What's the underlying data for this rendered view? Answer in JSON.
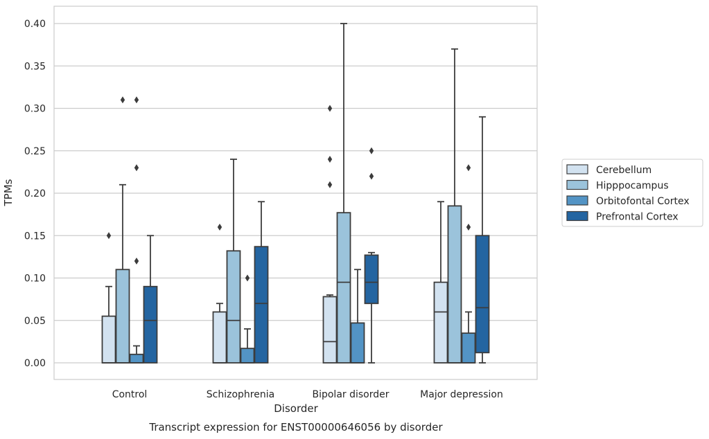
{
  "chart_data": {
    "type": "box",
    "caption": "Transcript expression for ENST00000646056 by disorder",
    "xlabel": "Disorder",
    "ylabel": "TPMs",
    "ylim": [
      -0.02,
      0.42
    ],
    "yticks": [
      0.0,
      0.05,
      0.1,
      0.15,
      0.2,
      0.25,
      0.3,
      0.35,
      0.4
    ],
    "ytick_labels": [
      "0.00",
      "0.05",
      "0.10",
      "0.15",
      "0.20",
      "0.25",
      "0.30",
      "0.35",
      "0.40"
    ],
    "grid": "horizontal",
    "legend_position": "right-outside",
    "categories": [
      "Control",
      "Schizophrenia",
      "Bipolar disorder",
      "Major depression"
    ],
    "series": [
      {
        "name": "Cerebellum",
        "color": "#d2e2f0",
        "boxes": [
          {
            "whisker_low": 0.0,
            "q1": 0.0,
            "median": 0.0,
            "q3": 0.055,
            "whisker_high": 0.09,
            "outliers": [
              0.15
            ]
          },
          {
            "whisker_low": 0.0,
            "q1": 0.0,
            "median": 0.0,
            "q3": 0.06,
            "whisker_high": 0.07,
            "outliers": [
              0.16
            ]
          },
          {
            "whisker_low": 0.0,
            "q1": 0.0,
            "median": 0.025,
            "q3": 0.078,
            "whisker_high": 0.08,
            "outliers": [
              0.21,
              0.24,
              0.3
            ]
          },
          {
            "whisker_low": 0.0,
            "q1": 0.0,
            "median": 0.06,
            "q3": 0.095,
            "whisker_high": 0.19,
            "outliers": []
          }
        ]
      },
      {
        "name": "Hipppocampus",
        "color": "#9bc3db",
        "boxes": [
          {
            "whisker_low": 0.0,
            "q1": 0.0,
            "median": 0.0,
            "q3": 0.11,
            "whisker_high": 0.21,
            "outliers": [
              0.31
            ]
          },
          {
            "whisker_low": 0.0,
            "q1": 0.0,
            "median": 0.05,
            "q3": 0.132,
            "whisker_high": 0.24,
            "outliers": []
          },
          {
            "whisker_low": 0.0,
            "q1": 0.0,
            "median": 0.095,
            "q3": 0.177,
            "whisker_high": 0.4,
            "outliers": []
          },
          {
            "whisker_low": 0.0,
            "q1": 0.0,
            "median": 0.0,
            "q3": 0.185,
            "whisker_high": 0.37,
            "outliers": []
          }
        ]
      },
      {
        "name": "Orbitofontal Cortex",
        "color": "#5394c5",
        "boxes": [
          {
            "whisker_low": 0.0,
            "q1": 0.0,
            "median": 0.0,
            "q3": 0.01,
            "whisker_high": 0.02,
            "outliers": [
              0.12,
              0.23,
              0.31
            ]
          },
          {
            "whisker_low": 0.0,
            "q1": 0.0,
            "median": 0.0,
            "q3": 0.017,
            "whisker_high": 0.04,
            "outliers": [
              0.1
            ]
          },
          {
            "whisker_low": 0.0,
            "q1": 0.0,
            "median": 0.0,
            "q3": 0.047,
            "whisker_high": 0.11,
            "outliers": []
          },
          {
            "whisker_low": 0.0,
            "q1": 0.0,
            "median": 0.0,
            "q3": 0.035,
            "whisker_high": 0.06,
            "outliers": [
              0.16,
              0.23
            ]
          }
        ]
      },
      {
        "name": "Prefrontal Cortex",
        "color": "#2465a1",
        "boxes": [
          {
            "whisker_low": 0.0,
            "q1": 0.0,
            "median": 0.05,
            "q3": 0.09,
            "whisker_high": 0.15,
            "outliers": []
          },
          {
            "whisker_low": 0.0,
            "q1": 0.0,
            "median": 0.07,
            "q3": 0.137,
            "whisker_high": 0.19,
            "outliers": []
          },
          {
            "whisker_low": 0.0,
            "q1": 0.07,
            "median": 0.095,
            "q3": 0.127,
            "whisker_high": 0.13,
            "outliers": [
              0.22,
              0.25
            ]
          },
          {
            "whisker_low": 0.0,
            "q1": 0.012,
            "median": 0.065,
            "q3": 0.15,
            "whisker_high": 0.29,
            "outliers": []
          }
        ]
      }
    ]
  }
}
